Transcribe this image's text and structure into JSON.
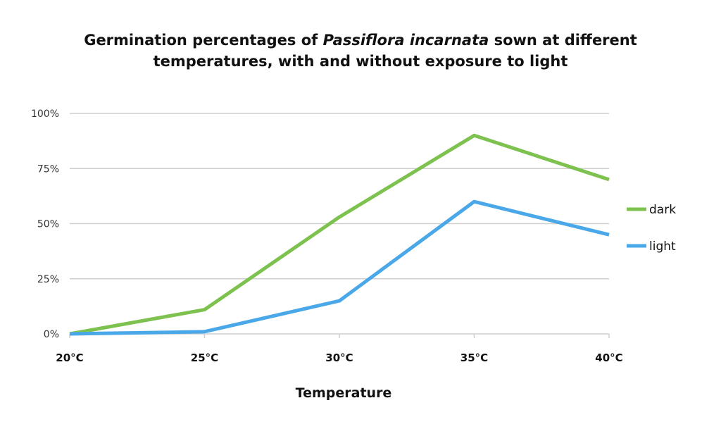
{
  "chart_data": {
    "type": "line",
    "title_line1_prefix": "Germination percentages of ",
    "title_species": "Passiflora incarnata",
    "title_line1_suffix": " sown at different",
    "title_line2": "temperatures, with and without exposure to light",
    "xlabel": "Temperature",
    "ylabel": "",
    "categories": [
      "20°C",
      "25°C",
      "30°C",
      "35°C",
      "40°C"
    ],
    "yticks": [
      "0%",
      "25%",
      "50%",
      "75%",
      "100%"
    ],
    "ylim": [
      0,
      100
    ],
    "grid": true,
    "legend_position": "right",
    "series": [
      {
        "name": "dark",
        "color": "#7dc14f",
        "values": [
          0,
          11,
          53,
          90,
          70
        ]
      },
      {
        "name": "light",
        "color": "#4aa8e8",
        "values": [
          0,
          1,
          15,
          60,
          45
        ]
      }
    ]
  }
}
